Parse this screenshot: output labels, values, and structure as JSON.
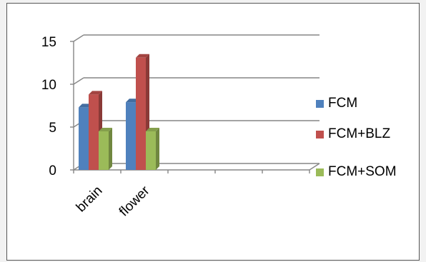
{
  "chart_data": {
    "type": "bar",
    "style": "3d-clustered-column",
    "categories": [
      "brain",
      "flower",
      "",
      "",
      ""
    ],
    "series": [
      {
        "name": "FCM",
        "values": [
          7.3,
          7.9,
          null,
          null,
          null
        ],
        "color": "#4F81BD"
      },
      {
        "name": "FCM+BLZ",
        "values": [
          8.8,
          13.1,
          null,
          null,
          null
        ],
        "color": "#C0504D"
      },
      {
        "name": "FCM+SOM",
        "values": [
          4.5,
          4.5,
          null,
          null,
          null
        ],
        "color": "#9BBB59"
      }
    ],
    "ylim": [
      0,
      15
    ],
    "yticks": [
      "0",
      "5",
      "10",
      "15"
    ],
    "grid": true,
    "legend_position": "right",
    "title": "",
    "xlabel": "",
    "ylabel": ""
  }
}
